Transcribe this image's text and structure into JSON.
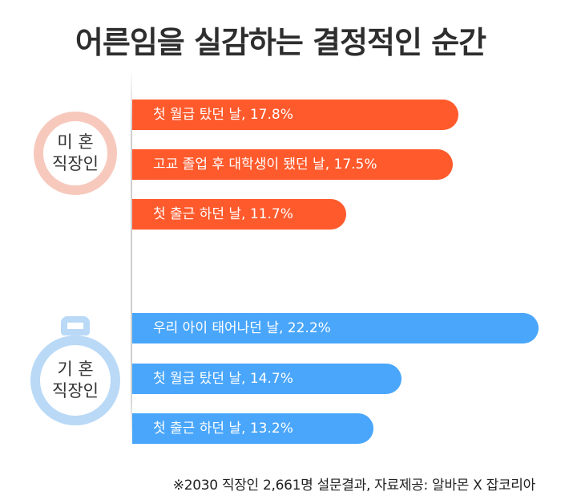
{
  "title": "어른임을 실감하는 결정적인 순간",
  "groups": {
    "unmarried": {
      "label_line1": "미 혼",
      "label_line2": "직장인"
    },
    "married": {
      "label_line1": "기 혼",
      "label_line2": "직장인"
    }
  },
  "footnote": "※2030 직장인 2,661명 설문결과,  자료제공: 알바몬 X 잡코리아",
  "colors": {
    "unmarried": "#ff5a2c",
    "married": "#49a6fb"
  },
  "chart_data": {
    "type": "bar",
    "orientation": "horizontal",
    "title": "어른임을 실감하는 결정적인 순간",
    "unit": "%",
    "groups": [
      {
        "name": "미 혼 직장인",
        "items": [
          {
            "label": "첫 월급 탔던 날, 17.8%",
            "value": 17.8
          },
          {
            "label": "고교 졸업 후 대학생이 됐던 날, 17.5%",
            "value": 17.5
          },
          {
            "label": "첫 출근 하던 날, 11.7%",
            "value": 11.7
          }
        ]
      },
      {
        "name": "기 혼 직장인",
        "items": [
          {
            "label": "우리 아이 태어나던 날, 22.2%",
            "value": 22.2
          },
          {
            "label": "첫 월급 탔던 날, 14.7%",
            "value": 14.7
          },
          {
            "label": "첫 출근 하던 날, 13.2%",
            "value": 13.2
          }
        ]
      }
    ]
  }
}
